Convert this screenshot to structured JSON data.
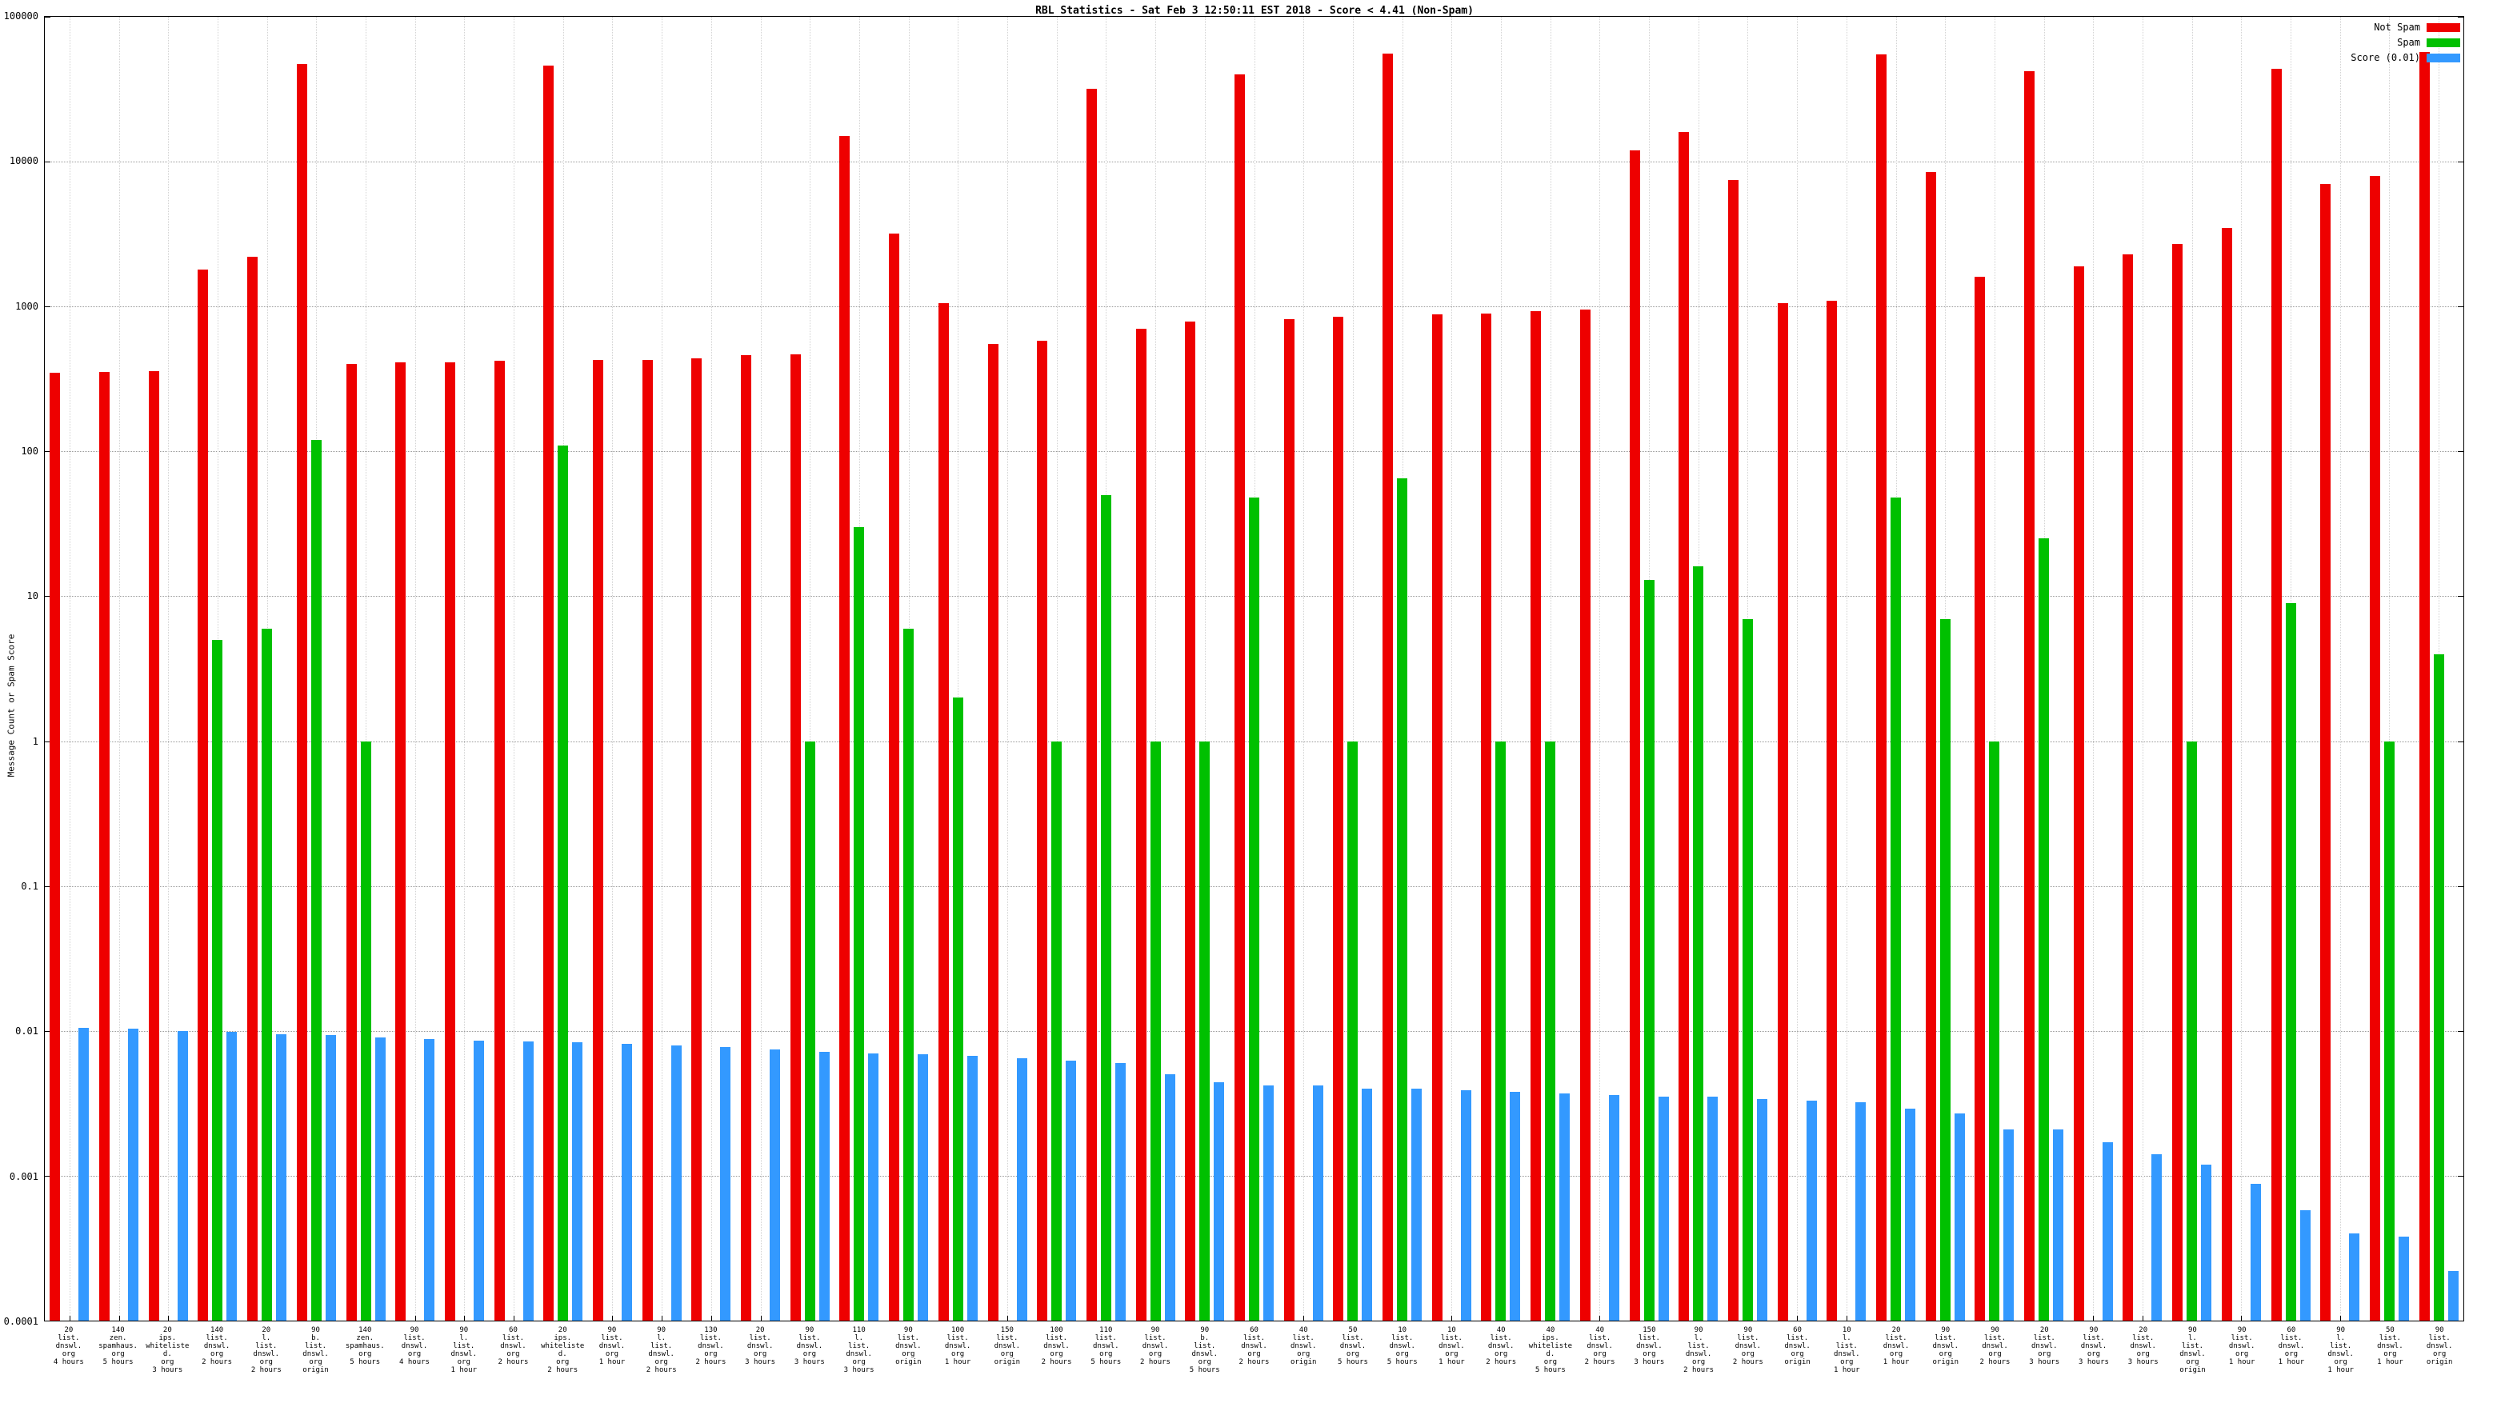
{
  "chart_data": {
    "type": "bar",
    "title": "RBL Statistics - Sat Feb 3 12:50:11 EST 2018 - Score < 4.41 (Non-Spam)",
    "ylabel": "Message Count or Spam Score",
    "xlabel": "",
    "y_scale": "log",
    "ylim": [
      0.0001,
      100000
    ],
    "yticks": [
      "100000",
      "10000",
      "1000",
      "100",
      "10",
      "1",
      "0.1",
      "0.01",
      "0.001",
      "0.0001"
    ],
    "grid": true,
    "legend_position": "top-right",
    "categories": [
      "20\nlist.\ndnswl.\norg\n4 hours",
      "140\nzen.\nspamhaus.\norg\n5 hours",
      "20\nips.\nwhitelisted.\norg\n3 hours",
      "140\nlist.\ndnswl.\norg\n2 hours",
      "20\nl.\nlist.\ndnswl.\norg\n2 hours",
      "90\nb.\nlist.\ndnswl.\norg\norigin",
      "140\nzen.\nspamhaus.\norg\n5 hours",
      "90\nlist.\ndnswl.\norg\n4 hours",
      "90\nl.\nlist.\ndnswl.\norg\n1 hour",
      "60\nlist.\ndnswl.\norg\n2 hours",
      "20\nips.\nwhitelisted.\norg\n2 hours",
      "90\nlist.\ndnswl.\norg\n1 hour",
      "90\nl.\nlist.\ndnswl.\norg\n2 hours",
      "130\nlist.\ndnswl.\norg\n2 hours",
      "20\nlist.\ndnswl.\norg\n3 hours",
      "90\nlist.\ndnswl.\norg\n3 hours",
      "110\nl.\nlist.\ndnswl.\norg\n3 hours",
      "90\nlist.\ndnswl.\norg\norigin",
      "100\nlist.\ndnswl.\norg\n1 hour",
      "150\nlist.\ndnswl.\norg\norigin",
      "100\nlist.\ndnswl.\norg\n2 hours",
      "110\nlist.\ndnswl.\norg\n5 hours",
      "90\nlist.\ndnswl.\norg\n2 hours",
      "90\nb.\nlist.\ndnswl.\norg\n5 hours",
      "60\nlist.\ndnswl.\norg\n2 hours",
      "40\nlist.\ndnswl.\norg\norigin",
      "50\nlist.\ndnswl.\norg\n5 hours",
      "10\nlist.\ndnswl.\norg\n5 hours",
      "10\nlist.\ndnswl.\norg\n1 hour",
      "40\nlist.\ndnswl.\norg\n2 hours",
      "40\nips.\nwhitelisted.\norg\n5 hours",
      "40\nlist.\ndnswl.\norg\n2 hours",
      "150\nlist.\ndnswl.\norg\n3 hours",
      "90\nl.\nlist.\ndnswl.\norg\n2 hours",
      "90\nlist.\ndnswl.\norg\n2 hours",
      "60\nlist.\ndnswl.\norg\norigin",
      "10\nl.\nlist.\ndnswl.\norg\n1 hour",
      "20\nlist.\ndnswl.\norg\n1 hour",
      "90\nlist.\ndnswl.\norg\norigin",
      "90\nlist.\ndnswl.\norg\n2 hours",
      "20\nlist.\ndnswl.\norg\n3 hours",
      "90\nlist.\ndnswl.\norg\n3 hours",
      "20\nlist.\ndnswl.\norg\n3 hours",
      "90\nl.\nlist.\ndnswl.\norg\norigin",
      "90\nlist.\ndnswl.\norg\n1 hour",
      "60\nlist.\ndnswl.\norg\n1 hour",
      "90\nl.\nlist.\ndnswl.\norg\n1 hour",
      "50\nlist.\ndnswl.\norg\n1 hour",
      "90\nlist.\ndnswl.\norg\norigin"
    ],
    "series": [
      {
        "name": "Not Spam",
        "color": "#ee0000",
        "values": [
          350,
          355,
          360,
          1800,
          2200,
          47000,
          400,
          410,
          410,
          420,
          46000,
          430,
          430,
          440,
          460,
          470,
          15000,
          3200,
          1050,
          550,
          580,
          32000,
          700,
          790,
          40000,
          820,
          850,
          56000,
          880,
          900,
          930,
          950,
          12000,
          16000,
          7500,
          1050,
          1100,
          55000,
          8500,
          1600,
          42000,
          1900,
          2300,
          2700,
          3500,
          44000,
          7000,
          8000,
          57000
        ]
      },
      {
        "name": "Spam",
        "color": "#00c000",
        "values": [
          0,
          0,
          0,
          5,
          6,
          120,
          1,
          0,
          0,
          0,
          110,
          0,
          0,
          0,
          0,
          1,
          30,
          6,
          2,
          0,
          1,
          50,
          1,
          1,
          48,
          0,
          1,
          65,
          0,
          1,
          1,
          0,
          13,
          16,
          7,
          0,
          0,
          48,
          7,
          1,
          25,
          0,
          0,
          1,
          0,
          9,
          0,
          1,
          4
        ]
      },
      {
        "name": "Score (0.01)",
        "color": "#3399ff",
        "values": [
          0.0105,
          0.0103,
          0.01,
          0.0099,
          0.0095,
          0.0094,
          0.009,
          0.0088,
          0.0086,
          0.0085,
          0.0083,
          0.0081,
          0.0079,
          0.0077,
          0.0074,
          0.0072,
          0.007,
          0.0069,
          0.0067,
          0.0065,
          0.0062,
          0.006,
          0.005,
          0.0044,
          0.0042,
          0.0042,
          0.004,
          0.004,
          0.0039,
          0.0038,
          0.0037,
          0.0036,
          0.0035,
          0.0035,
          0.0034,
          0.0033,
          0.0032,
          0.0029,
          0.0027,
          0.0021,
          0.0021,
          0.0017,
          0.0014,
          0.0012,
          0.00088,
          0.00058,
          0.0004,
          0.00038,
          0.00022
        ]
      }
    ]
  }
}
